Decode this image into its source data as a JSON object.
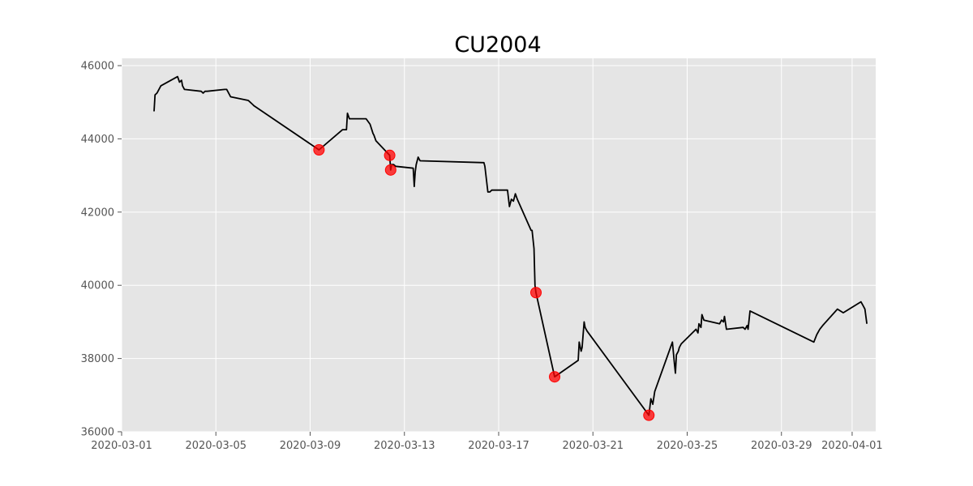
{
  "chart_data": {
    "type": "line",
    "title": "CU2004",
    "xlabel": "",
    "ylabel": "",
    "xlim": [
      "2020-03-01T00:00",
      "2020-04-02T00:00"
    ],
    "ylim": [
      36000,
      46200
    ],
    "grid": true,
    "legend": "none",
    "colors": {
      "background": "#e5e5e5",
      "grid": "#ffffff",
      "line": "#000000",
      "marker": "#ff0000"
    },
    "x_ticks": [
      "2020-03-01",
      "2020-03-05",
      "2020-03-09",
      "2020-03-13",
      "2020-03-17",
      "2020-03-21",
      "2020-03-25",
      "2020-03-29",
      "2020-04-01"
    ],
    "y_ticks": [
      36000,
      38000,
      40000,
      42000,
      44000,
      46000
    ],
    "series": [
      {
        "name": "",
        "x": [
          "2020-03-02T09:00",
          "2020-03-02T10:00",
          "2020-03-02T12:00",
          "2020-03-02T14:00",
          "2020-03-02T16:00",
          "2020-03-03T09:00",
          "2020-03-03T11:00",
          "2020-03-03T13:00",
          "2020-03-03T14:00",
          "2020-03-03T16:00",
          "2020-03-04T09:00",
          "2020-03-04T11:00",
          "2020-03-04T13:00",
          "2020-03-04T15:00",
          "2020-03-05T09:00",
          "2020-03-05T11:00",
          "2020-03-05T13:00",
          "2020-03-05T15:00",
          "2020-03-06T09:00",
          "2020-03-06T11:00",
          "2020-03-06T13:00",
          "2020-03-06T15:00",
          "2020-03-09T09:00",
          "2020-03-10T09:00",
          "2020-03-10T13:00",
          "2020-03-10T14:00",
          "2020-03-10T16:00",
          "2020-03-10T18:00",
          "2020-03-10T20:00",
          "2020-03-11T09:00",
          "2020-03-11T13:00",
          "2020-03-11T16:00",
          "2020-03-11T17:00",
          "2020-03-11T19:00",
          "2020-03-12T09:00",
          "2020-03-12T10:00",
          "2020-03-12T11:00",
          "2020-03-12T13:00",
          "2020-03-12T15:00",
          "2020-03-13T09:00",
          "2020-03-13T10:00",
          "2020-03-13T11:00",
          "2020-03-13T12:00",
          "2020-03-13T14:00",
          "2020-03-13T15:00",
          "2020-03-13T16:00",
          "2020-03-16T09:00",
          "2020-03-16T10:00",
          "2020-03-16T13:00",
          "2020-03-16T15:00",
          "2020-03-16T17:00",
          "2020-03-17T09:00",
          "2020-03-17T11:00",
          "2020-03-17T13:00",
          "2020-03-17T15:00",
          "2020-03-17T17:00",
          "2020-03-17T19:00",
          "2020-03-18T09:00",
          "2020-03-18T10:00",
          "2020-03-18T12:00",
          "2020-03-18T13:00",
          "2020-03-18T14:00",
          "2020-03-19T09:00",
          "2020-03-20T09:00",
          "2020-03-20T10:00",
          "2020-03-20T12:00",
          "2020-03-20T13:00",
          "2020-03-20T15:00",
          "2020-03-20T16:00",
          "2020-03-20T18:00",
          "2020-03-23T09:00",
          "2020-03-23T11:00",
          "2020-03-23T13:00",
          "2020-03-23T15:00",
          "2020-03-24T09:00",
          "2020-03-24T11:00",
          "2020-03-24T12:00",
          "2020-03-24T13:00",
          "2020-03-24T15:00",
          "2020-03-24T16:00",
          "2020-03-24T18:00",
          "2020-03-25T09:00",
          "2020-03-25T11:00",
          "2020-03-25T12:00",
          "2020-03-25T14:00",
          "2020-03-25T15:00",
          "2020-03-25T17:00",
          "2020-03-26T09:00",
          "2020-03-26T11:00",
          "2020-03-26T13:00",
          "2020-03-26T14:00",
          "2020-03-26T16:00",
          "2020-03-27T09:00",
          "2020-03-27T11:00",
          "2020-03-27T13:00",
          "2020-03-27T14:00",
          "2020-03-27T16:00",
          "2020-03-30T09:00",
          "2020-03-30T12:00",
          "2020-03-30T15:00",
          "2020-03-30T18:00",
          "2020-03-31T09:00",
          "2020-03-31T12:00",
          "2020-03-31T15:00",
          "2020-04-01T09:00",
          "2020-04-01T11:00",
          "2020-04-01T13:00",
          "2020-04-01T15:00"
        ],
        "y": [
          44750,
          45200,
          45250,
          45350,
          45450,
          45700,
          45550,
          45600,
          45450,
          45350,
          45300,
          45250,
          45300,
          45300,
          45350,
          45350,
          45250,
          45150,
          45050,
          45000,
          44950,
          44900,
          43700,
          44250,
          44250,
          44700,
          44550,
          44550,
          44550,
          44550,
          44400,
          44150,
          44100,
          43950,
          43550,
          43150,
          43300,
          43300,
          43250,
          43200,
          42700,
          43100,
          43300,
          43500,
          43450,
          43400,
          43350,
          43250,
          42550,
          42550,
          42600,
          42600,
          42150,
          42350,
          42300,
          42500,
          42350,
          41500,
          41500,
          41000,
          40000,
          39800,
          37500,
          37950,
          38450,
          38200,
          38300,
          39000,
          38850,
          38750,
          36450,
          36900,
          36750,
          37100,
          38450,
          37850,
          37600,
          38100,
          38200,
          38300,
          38400,
          38800,
          38700,
          38950,
          38850,
          39200,
          39050,
          38950,
          39050,
          39000,
          39150,
          38800,
          38850,
          38800,
          38900,
          38800,
          39300,
          38450,
          38650,
          38800,
          38900,
          39350,
          39300,
          39250,
          39550,
          39450,
          39350,
          38950
        ]
      }
    ],
    "markers": {
      "x": [
        "2020-03-09T09:00",
        "2020-03-12T09:00",
        "2020-03-12T10:00",
        "2020-03-18T14:00",
        "2020-03-19T09:00",
        "2020-03-23T09:00"
      ],
      "y": [
        43700,
        43550,
        43150,
        39800,
        37500,
        36450
      ]
    }
  }
}
